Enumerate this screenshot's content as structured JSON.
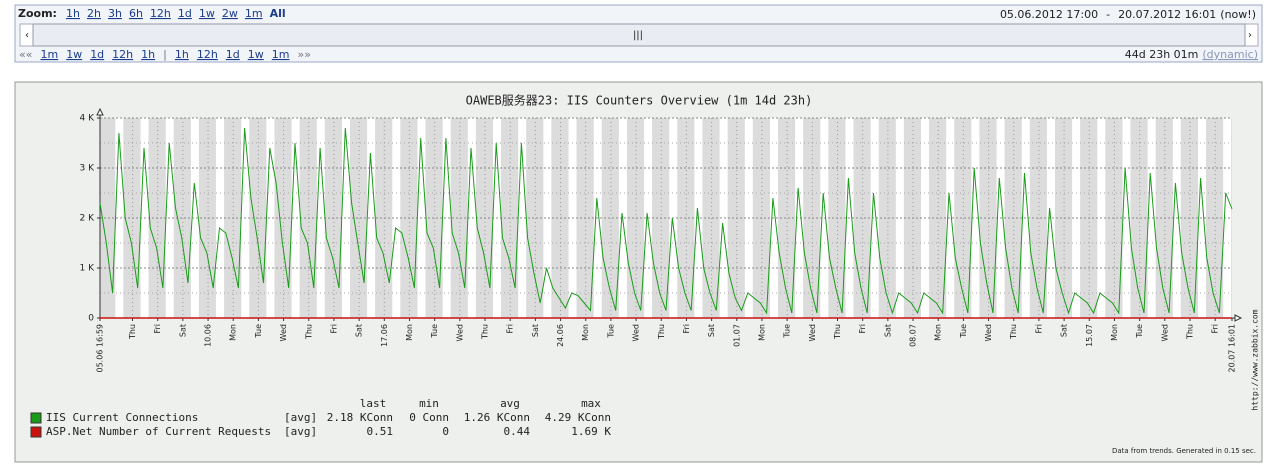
{
  "zoom": {
    "label": "Zoom:",
    "links": [
      "1h",
      "2h",
      "3h",
      "6h",
      "12h",
      "1d",
      "1w",
      "2w",
      "1m",
      "All"
    ]
  },
  "period": {
    "from": "05.06.2012 17:00",
    "separator": "-",
    "till": "20.07.2012 16:01",
    "now": "(now!)"
  },
  "nav": {
    "back_arrows": "««",
    "back": [
      "1m",
      "1w",
      "1d",
      "12h",
      "1h"
    ],
    "divider": "|",
    "forward": [
      "1h",
      "12h",
      "1d",
      "1w",
      "1m"
    ],
    "forward_arrows": "»»",
    "length": "44d 23h 01m",
    "mode": "(dynamic)"
  },
  "chart_data": {
    "type": "line",
    "title": "OAWEB服务器23: IIS Counters Overview (1m 14d 23h)",
    "ylim": [
      0,
      4000
    ],
    "yticks": [
      0,
      {
        "value": 1000,
        "label": "1 K"
      },
      {
        "value": 2000,
        "label": "2 K"
      },
      {
        "value": 3000,
        "label": "3 K"
      },
      {
        "value": 4000,
        "label": "4 K"
      }
    ],
    "xticks": [
      "05.06 16:59",
      "Thu",
      "Fri",
      "Sat",
      "10.06",
      "Mon",
      "Tue",
      "Wed",
      "Thu",
      "Fri",
      "Sat",
      "17.06",
      "Mon",
      "Tue",
      "Wed",
      "Thu",
      "Fri",
      "Sat",
      "24.06",
      "Mon",
      "Tue",
      "Wed",
      "Thu",
      "Fri",
      "Sat",
      "01.07",
      "Mon",
      "Tue",
      "Wed",
      "Thu",
      "Fri",
      "Sat",
      "08.07",
      "Mon",
      "Tue",
      "Wed",
      "Thu",
      "Fri",
      "Sat",
      "15.07",
      "Mon",
      "Tue",
      "Wed",
      "Thu",
      "Fri",
      "20.07 16:01"
    ],
    "grid": true,
    "series": [
      {
        "name": "IIS Current Connections",
        "color": "#1a9c1a",
        "values": [
          2300,
          1500,
          500,
          3700,
          2000,
          1500,
          600,
          3400,
          1800,
          1400,
          600,
          3500,
          2200,
          1600,
          700,
          2700,
          1600,
          1300,
          600,
          1800,
          1700,
          1200,
          600,
          3800,
          2400,
          1600,
          700,
          3400,
          2700,
          1500,
          600,
          3500,
          1800,
          1500,
          600,
          3400,
          1600,
          1200,
          600,
          3800,
          2300,
          1500,
          700,
          3300,
          1600,
          1300,
          700,
          1800,
          1700,
          1200,
          600,
          3600,
          1700,
          1400,
          600,
          3600,
          1700,
          1300,
          600,
          3400,
          1800,
          1300,
          600,
          3500,
          1600,
          1200,
          600,
          3500,
          1600,
          900,
          300,
          1000,
          600,
          400,
          200,
          500,
          450,
          300,
          150,
          2400,
          1200,
          600,
          150,
          2100,
          1100,
          500,
          150,
          2100,
          1100,
          500,
          150,
          2000,
          1000,
          500,
          150,
          2200,
          1000,
          500,
          150,
          1900,
          900,
          400,
          150,
          500,
          400,
          300,
          100,
          2400,
          1300,
          600,
          100,
          2600,
          1300,
          600,
          100,
          2500,
          1200,
          600,
          100,
          2800,
          1300,
          600,
          100,
          2500,
          1200,
          500,
          100,
          500,
          400,
          300,
          100,
          500,
          400,
          300,
          100,
          2500,
          1200,
          600,
          100,
          3000,
          1500,
          700,
          100,
          2800,
          1400,
          600,
          100,
          2900,
          1300,
          600,
          100,
          2200,
          1000,
          500,
          100,
          500,
          400,
          300,
          100,
          500,
          400,
          300,
          100,
          3000,
          1400,
          600,
          100,
          2900,
          1400,
          600,
          100,
          2700,
          1300,
          600,
          100,
          2800,
          1200,
          500,
          100,
          2500,
          2180
        ]
      },
      {
        "name": "ASP.Net Number of Current Requests",
        "color": "#cc1111",
        "values": [
          0.5,
          0.4,
          0.5,
          0.5,
          0.4,
          0.5,
          0.5,
          0.4,
          0.5,
          0.5,
          0.4,
          0.5,
          0.5,
          0.4,
          0.5,
          0.5,
          0.4,
          0.5,
          0.5,
          0.4,
          0.5,
          0.5,
          0.4,
          0.5,
          0.5,
          0.4,
          0.5,
          0.5,
          0.4,
          0.5,
          0.5,
          0.4,
          0.5,
          0.5,
          0.4,
          0.5,
          0.5,
          0.4,
          0.5,
          0.5,
          0.4,
          0.5,
          0.5,
          0.4,
          0.5
        ]
      }
    ],
    "legend": {
      "headers": [
        "last",
        "min",
        "avg",
        "max"
      ],
      "func": "[avg]",
      "rows": [
        [
          "2.18 KConn",
          "0 Conn",
          "1.26 KConn",
          "4.29 KConn"
        ],
        [
          "0.51",
          "0",
          "0.44",
          "1.69 K"
        ]
      ]
    },
    "footer": "Data from trends. Generated in 0.15 sec.",
    "watermark": "http://www.zabbix.com"
  }
}
